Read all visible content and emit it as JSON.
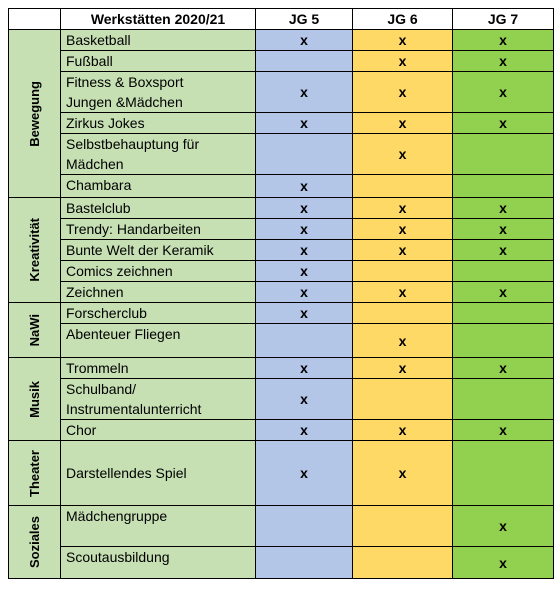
{
  "header": {
    "title": "Werkstätten 2020/21",
    "columns": [
      "JG 5",
      "JG 6",
      "JG 7"
    ]
  },
  "groups": [
    {
      "label": "Bewegung",
      "rows": [
        {
          "name": [
            "Basketball"
          ],
          "marks": [
            "x",
            "x",
            "x"
          ]
        },
        {
          "name": [
            "Fußball"
          ],
          "marks": [
            null,
            "x",
            "x"
          ]
        },
        {
          "name": [
            "Fitness & Boxsport",
            "Jungen &Mädchen"
          ],
          "marks": [
            "x",
            "x",
            "x"
          ]
        },
        {
          "name": [
            "Zirkus Jokes"
          ],
          "marks": [
            "x",
            "x",
            "x"
          ]
        },
        {
          "name": [
            "Selbstbehauptung für",
            "Mädchen"
          ],
          "marks": [
            null,
            "x",
            null
          ]
        },
        {
          "name": [
            "Chambara"
          ],
          "marks": [
            "x",
            null,
            null
          ]
        }
      ]
    },
    {
      "label": "Kreativität",
      "rows": [
        {
          "name": [
            "Bastelclub"
          ],
          "marks": [
            "x",
            "x",
            "x"
          ]
        },
        {
          "name": [
            "Trendy:  Handarbeiten"
          ],
          "marks": [
            "x",
            "x",
            "x"
          ]
        },
        {
          "name": [
            "Bunte Welt der Keramik"
          ],
          "marks": [
            "x",
            "x",
            "x"
          ]
        },
        {
          "name": [
            "Comics zeichnen"
          ],
          "marks": [
            "x",
            null,
            null
          ]
        },
        {
          "name": [
            "Zeichnen"
          ],
          "marks": [
            "x",
            "x",
            "x"
          ]
        }
      ]
    },
    {
      "label": "NaWi",
      "rows": [
        {
          "name": [
            "Forscherclub"
          ],
          "marks": [
            "x",
            null,
            null
          ]
        },
        {
          "name": [
            "Abenteuer Fliegen"
          ],
          "marks": [
            null,
            "x",
            null
          ]
        }
      ]
    },
    {
      "label": "Musik",
      "rows": [
        {
          "name": [
            "Trommeln"
          ],
          "marks": [
            "x",
            "x",
            "x"
          ]
        },
        {
          "name": [
            "Schulband/",
            "Instrumentalunterricht"
          ],
          "marks": [
            "x",
            null,
            null
          ]
        },
        {
          "name": [
            "Chor"
          ],
          "marks": [
            "x",
            "x",
            "x"
          ]
        }
      ]
    },
    {
      "label": "Theater",
      "rows": [
        {
          "name": [
            "Darstellendes Spiel"
          ],
          "marks": [
            "x",
            "x",
            null
          ]
        }
      ]
    },
    {
      "label": "Soziales",
      "rows": [
        {
          "name": [
            "Mädchengruppe"
          ],
          "marks": [
            null,
            null,
            "x"
          ]
        },
        {
          "name": [
            "Scoutausbildung"
          ],
          "marks": [
            null,
            null,
            "x"
          ]
        }
      ]
    }
  ]
}
